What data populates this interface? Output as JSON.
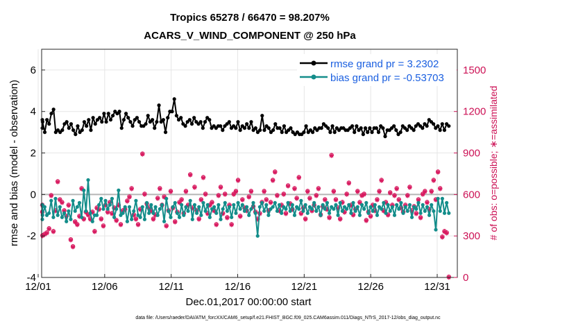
{
  "chart_data": {
    "type": "line",
    "title_line1": "Tropics 65278 / 66470 = 98.207%",
    "title_line2": "ACARS_V_WIND_COMPONENT @ 250 hPa",
    "xlabel": "Dec.01,2017 00:00:00 start",
    "ylabel": "rmse and bias (model - observation)",
    "y2label": "# of obs: o=possible; ∗=assimilated",
    "footer": "data file: /Users/raeder/DAI/ATM_forcXX/CAM6_setup/f.e21.FHIST_BGC.f09_025.CAM6assim.011/Diags_NTrS_2017-12/obs_diag_output.nc",
    "xlim": [
      1,
      32
    ],
    "ylim": [
      -4,
      7
    ],
    "y2lim": [
      0,
      1650
    ],
    "x_ticks": [
      {
        "x": 1,
        "label": "12/01"
      },
      {
        "x": 6,
        "label": "12/06"
      },
      {
        "x": 11,
        "label": "12/11"
      },
      {
        "x": 16,
        "label": "12/16"
      },
      {
        "x": 21,
        "label": "12/21"
      },
      {
        "x": 26,
        "label": "12/26"
      },
      {
        "x": 31,
        "label": "12/31"
      }
    ],
    "y_ticks": [
      {
        "v": -4,
        "label": "-4"
      },
      {
        "v": -2,
        "label": "-2"
      },
      {
        "v": 0,
        "label": "0"
      },
      {
        "v": 2,
        "label": "2"
      },
      {
        "v": 4,
        "label": "4"
      },
      {
        "v": 6,
        "label": "6"
      }
    ],
    "y2_ticks": [
      {
        "v": 0,
        "label": "0"
      },
      {
        "v": 300,
        "label": "300"
      },
      {
        "v": 600,
        "label": "600"
      },
      {
        "v": 900,
        "label": "900"
      },
      {
        "v": 1200,
        "label": "1200"
      },
      {
        "v": 1500,
        "label": "1500"
      }
    ],
    "grid": true,
    "legend_position": "top-right",
    "colors": {
      "rmse": "#000000",
      "bias": "#138d8a",
      "obs": "#d81b60",
      "zero": "#b5b5b5"
    },
    "series": [
      {
        "name": "rmse grand pr = 3.2302",
        "key": "rmse",
        "values": [
          3.6,
          3.2,
          3.5,
          3.0,
          3.6,
          3.4,
          3.9,
          4.1,
          3.0,
          3.1,
          3.0,
          3.1,
          3.4,
          3.5,
          3.2,
          3.4,
          3.1,
          2.9,
          3.3,
          3.0,
          3.1,
          3.5,
          3.3,
          3.6,
          3.1,
          3.7,
          3.4,
          3.6,
          3.7,
          3.5,
          3.9,
          3.5,
          3.9,
          3.6,
          3.8,
          4.0,
          3.9,
          4.0,
          3.2,
          3.6,
          3.9,
          3.7,
          3.5,
          3.3,
          3.6,
          3.7,
          3.5,
          3.3,
          3.3,
          3.4,
          3.8,
          3.5,
          3.6,
          3.2,
          3.5,
          4.3,
          3.5,
          3.6,
          3.0,
          3.7,
          4.0,
          4.0,
          4.6,
          3.8,
          3.6,
          3.7,
          3.4,
          3.3,
          3.5,
          3.6,
          3.4,
          3.7,
          3.5,
          3.4,
          3.5,
          3.2,
          3.5,
          3.7,
          3.6,
          3.2,
          3.3,
          3.2,
          3.3,
          3.3,
          3.1,
          3.3,
          3.4,
          3.5,
          3.2,
          3.3,
          3.2,
          3.5,
          3.1,
          3.3,
          3.2,
          3.4,
          3.2,
          3.5,
          3.1,
          3.2,
          3.0,
          3.1,
          3.8,
          3.1,
          3.3,
          3.2,
          3.0,
          3.1,
          3.4,
          3.2,
          3.2,
          3.0,
          3.3,
          3.0,
          3.1,
          3.2,
          3.0,
          2.9,
          3.0,
          2.9,
          2.9,
          3.0,
          3.3,
          3.0,
          3.1,
          3.0,
          3.2,
          3.1,
          3.2,
          3.2,
          3.4,
          3.3,
          3.2,
          3.0,
          3.3,
          3.0,
          3.2,
          3.1,
          3.2,
          3.2,
          3.1,
          3.1,
          3.2,
          3.3,
          3.0,
          3.3,
          3.1,
          3.2,
          2.9,
          3.2,
          3.0,
          3.2,
          3.0,
          3.2,
          3.2,
          3.0,
          3.3,
          3.2,
          2.8,
          3.1,
          3.1,
          3.2,
          3.3,
          3.1,
          2.9,
          3.0,
          3.3,
          3.2,
          3.1,
          3.3,
          3.2,
          3.1,
          3.3,
          3.4,
          3.3,
          3.2,
          3.4,
          3.3,
          3.6,
          3.5,
          3.4,
          3.2,
          3.3,
          3.1,
          3.4,
          3.1,
          3.4,
          3.3
        ]
      },
      {
        "name": "bias grand pr = -0.53703",
        "key": "bias",
        "values": [
          -0.5,
          -1.2,
          -1.0,
          -0.6,
          -1.0,
          -0.9,
          -0.3,
          -1.1,
          -0.2,
          -1.0,
          -0.6,
          -1.1,
          -0.9,
          -1.3,
          -0.8,
          -1.2,
          -0.3,
          -0.8,
          -0.6,
          -0.4,
          -1.1,
          0.2,
          -0.8,
          0.7,
          -0.9,
          -1.3,
          -1.0,
          -1.0,
          -0.5,
          -0.2,
          -0.7,
          -0.3,
          -0.7,
          -0.5,
          -0.2,
          -1.1,
          -0.7,
          0.2,
          -1.0,
          -0.9,
          -0.6,
          -1.3,
          -0.6,
          -1.2,
          -0.8,
          -0.3,
          -1.0,
          -1.1,
          -0.6,
          -1.2,
          -0.4,
          -0.9,
          -0.5,
          -0.9,
          -0.6,
          -1.0,
          -0.7,
          -0.5,
          -1.3,
          -0.2,
          -0.8,
          -1.1,
          -0.6,
          -0.4,
          -0.9,
          -1.1,
          -0.5,
          -1.0,
          -0.6,
          -0.8,
          -0.3,
          -1.2,
          -0.5,
          -0.9,
          -0.6,
          -1.0,
          -0.4,
          -0.8,
          -0.5,
          -1.1,
          -0.7,
          -0.6,
          -0.9,
          -0.5,
          -1.2,
          -0.7,
          -0.4,
          -0.8,
          -0.6,
          -1.1,
          -0.5,
          -0.9,
          -0.4,
          -0.7,
          -0.5,
          -0.8,
          -0.6,
          -1.0,
          -0.7,
          -0.4,
          -0.9,
          -2.0,
          -0.6,
          -0.4,
          -0.8,
          -0.5,
          -1.0,
          -0.7,
          -0.6,
          -0.4,
          -0.8,
          -0.5,
          -0.9,
          -0.6,
          -0.7,
          -0.4,
          -0.8,
          -0.5,
          -1.0,
          -0.6,
          -0.7,
          -0.3,
          -0.8,
          -0.5,
          -0.9,
          -0.6,
          -0.7,
          -0.4,
          -0.8,
          -0.6,
          -1.0,
          -0.5,
          -0.7,
          -0.4,
          -0.9,
          -0.6,
          -0.7,
          -0.5,
          -1.0,
          -0.4,
          -0.8,
          -0.6,
          -0.7,
          -0.5,
          -0.9,
          -0.4,
          -0.8,
          -0.6,
          -1.0,
          -0.5,
          -0.7,
          -0.4,
          -0.9,
          -0.6,
          -0.8,
          -0.5,
          -1.0,
          -0.6,
          -0.7,
          -0.4,
          -0.9,
          -0.5,
          -0.8,
          -0.6,
          -1.0,
          -0.5,
          -0.7,
          -0.4,
          -0.9,
          -0.6,
          -0.8,
          -0.5,
          -1.1,
          -0.6,
          -0.7,
          -0.4,
          -0.9,
          -0.5,
          -0.8,
          -0.6,
          -1.0,
          -0.5,
          -0.8,
          -1.7,
          -0.2,
          -0.8,
          -0.2,
          -0.9,
          -0.4,
          -0.9
        ]
      },
      {
        "name": "# of obs",
        "key": "obs",
        "values": [
          520,
          470,
          300,
          310,
          320,
          350,
          590,
          330,
          480,
          690,
          560,
          540,
          480,
          440,
          520,
          270,
          220,
          400,
          380,
          440,
          640,
          420,
          470,
          450,
          420,
          470,
          330,
          500,
          490,
          420,
          370,
          520,
          470,
          540,
          460,
          500,
          410,
          520,
          380,
          480,
          490,
          550,
          580,
          640,
          450,
          420,
          380,
          490,
          890,
          600,
          530,
          500,
          480,
          420,
          450,
          570,
          640,
          520,
          580,
          370,
          480,
          620,
          500,
          400,
          470,
          540,
          560,
          460,
          620,
          520,
          740,
          500,
          650,
          480,
          420,
          560,
          720,
          600,
          460,
          520,
          540,
          480,
          380,
          590,
          650,
          460,
          600,
          430,
          520,
          380,
          600,
          620,
          700,
          440,
          560,
          500,
          480,
          580,
          620,
          510,
          470,
          420,
          460,
          540,
          620,
          560,
          480,
          540,
          700,
          760,
          590,
          480,
          520,
          600,
          460,
          660,
          530,
          490,
          640,
          570,
          720,
          460,
          500,
          420,
          620,
          570,
          480,
          520,
          590,
          640,
          450,
          510,
          560,
          490,
          430,
          880,
          620,
          560,
          500,
          420,
          540,
          470,
          600,
          680,
          520,
          450,
          490,
          620,
          540,
          590,
          600,
          410,
          470,
          440,
          520,
          480,
          560,
          620,
          700,
          480,
          540,
          450,
          610,
          520,
          590,
          640,
          560,
          500,
          470,
          520,
          590,
          650,
          480,
          510,
          460,
          560,
          430,
          600,
          620,
          540,
          490,
          620,
          700,
          560,
          760,
          640,
          290,
          330,
          320,
          0
        ]
      }
    ]
  }
}
